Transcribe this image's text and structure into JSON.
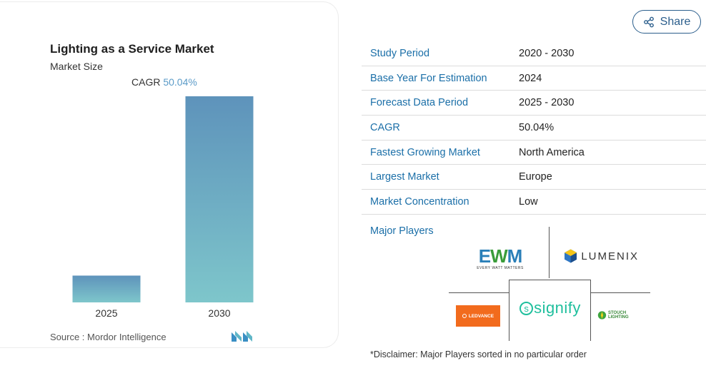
{
  "chart": {
    "title": "Lighting as a Service Market",
    "subtitle": "Market Size",
    "cagr_label": "CAGR",
    "cagr_value": "50.04%",
    "source": "Source :  Mordor Intelligence"
  },
  "chart_data": {
    "type": "bar",
    "title": "Lighting as a Service Market",
    "subtitle": "Market Size",
    "categories": [
      "2025",
      "2030"
    ],
    "values": [
      0.13,
      1.0
    ],
    "value_scale": "relative (no values printed on chart)",
    "annotation": "CAGR 50.04%",
    "xlabel": "",
    "ylabel": "",
    "grid": false,
    "colors": {
      "bar_top": "#5e93bb",
      "bar_bottom": "#7ec6cb"
    }
  },
  "share": {
    "label": "Share",
    "icon": "share-icon"
  },
  "info": [
    {
      "key": "Study Period",
      "value": "2020 - 2030"
    },
    {
      "key": "Base Year For Estimation",
      "value": "2024"
    },
    {
      "key": "Forecast Data Period",
      "value": "2025 - 2030"
    },
    {
      "key": "CAGR",
      "value": "50.04%"
    },
    {
      "key": "Fastest Growing Market",
      "value": "North America"
    },
    {
      "key": "Largest Market",
      "value": "Europe"
    },
    {
      "key": "Market Concentration",
      "value": "Low"
    }
  ],
  "players": {
    "label": "Major Players",
    "logos": {
      "ewm": {
        "name": "EWM",
        "tagline": "EVERY WATT MATTERS"
      },
      "lumenix": {
        "name": "LUMENIX"
      },
      "ledvance": {
        "name": "LEDVANCE"
      },
      "signify": {
        "name": "signify"
      },
      "stouch": {
        "name": "STOUCH LIGHTING"
      }
    }
  },
  "disclaimer": "*Disclaimer: Major Players sorted in no particular order",
  "colors": {
    "accent": "#1b6fa8",
    "share_border": "#2b5e8c",
    "cagr": "#5b9bc8"
  }
}
